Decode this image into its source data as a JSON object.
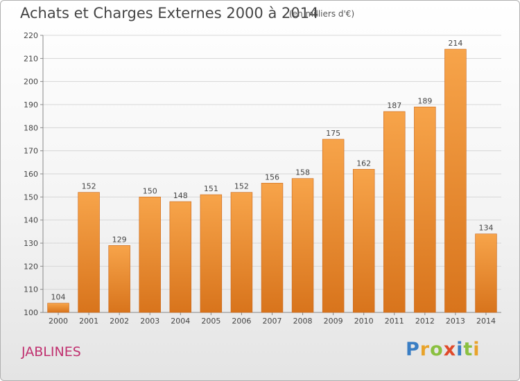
{
  "header": {
    "title": "Achats et Charges Externes 2000 à 2014",
    "subtitle": "(en milliers d'€)"
  },
  "footer": {
    "place": "JABLINES",
    "logo_letters": [
      "P",
      "r",
      "o",
      "x",
      "i",
      "t",
      "i"
    ]
  },
  "colors": {
    "bar_light": "#f7a44a",
    "bar_dark": "#d8741c",
    "grid": "#d6d6d6",
    "place": "#c0306f"
  },
  "chart_data": {
    "type": "bar",
    "title": "Achats et Charges Externes 2000 à 2014",
    "subtitle": "(en milliers d'€)",
    "categories": [
      "2000",
      "2001",
      "2002",
      "2003",
      "2004",
      "2005",
      "2006",
      "2007",
      "2008",
      "2009",
      "2010",
      "2011",
      "2012",
      "2013",
      "2014"
    ],
    "values": [
      104,
      152,
      129,
      150,
      148,
      151,
      152,
      156,
      158,
      175,
      162,
      187,
      189,
      214,
      134
    ],
    "ylim": [
      100,
      220
    ],
    "yticks": [
      100,
      110,
      120,
      130,
      140,
      150,
      160,
      170,
      180,
      190,
      200,
      210,
      220
    ],
    "grid": true,
    "data_labels": true
  }
}
